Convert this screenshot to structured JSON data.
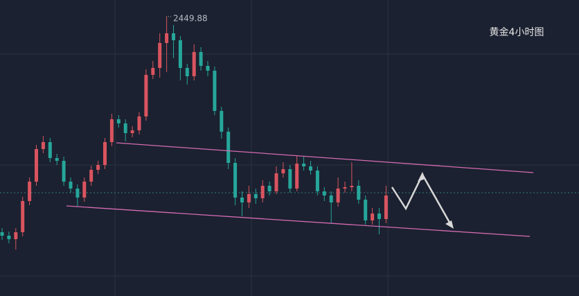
{
  "chart_data": {
    "type": "candlestick",
    "title": "黄金4小时图",
    "annotation": "2449.88",
    "up_color": "#d9545f",
    "down_color": "#26a69a",
    "ylim": [
      2349.25,
      2456
    ],
    "open": [
      2372.25,
      2371,
      2369.75,
      2372.25,
      2383.5,
      2390.5,
      2402.25,
      2404.75,
      2399,
      2398,
      2390.5,
      2388,
      2384.75,
      2390.5,
      2394.75,
      2396.5,
      2404.75,
      2413,
      2411.5,
      2408,
      2409,
      2414,
      2429,
      2431.5,
      2440.5,
      2444,
      2441.5,
      2431.5,
      2428.5,
      2437.25,
      2432.25,
      2430.5,
      2416,
      2408.5,
      2397.25,
      2384.75,
      2383,
      2386,
      2384.5,
      2389,
      2387,
      2393.5,
      2395,
      2388,
      2397,
      2396,
      2394.5,
      2387,
      2385.5,
      2383,
      2388,
      2388.5,
      2389,
      2384,
      2376.5,
      2379,
      2377
    ],
    "high": [
      2373.75,
      2372.5,
      2373.75,
      2385,
      2392,
      2403.75,
      2407,
      2406.25,
      2400.5,
      2399.5,
      2392,
      2389.5,
      2392,
      2396.25,
      2398,
      2406.25,
      2415,
      2414.5,
      2413,
      2410.5,
      2415.5,
      2431,
      2434,
      2444,
      2449.88,
      2447,
      2443,
      2433,
      2440,
      2439,
      2434,
      2432,
      2417.5,
      2410,
      2399,
      2387,
      2389,
      2388,
      2391,
      2390.5,
      2396,
      2397.5,
      2396.5,
      2400,
      2399.5,
      2398,
      2396,
      2388.5,
      2387,
      2392,
      2390.5,
      2397.5,
      2391,
      2385.5,
      2381,
      2381,
      2389
    ],
    "low": [
      2369.5,
      2368.25,
      2366,
      2370.75,
      2382,
      2389,
      2400.75,
      2397.5,
      2396.5,
      2389,
      2386.5,
      2381.5,
      2383.25,
      2389,
      2393.25,
      2395,
      2403.25,
      2410,
      2405,
      2406.5,
      2407.5,
      2412.5,
      2427.5,
      2428,
      2430,
      2435,
      2427,
      2425.5,
      2427,
      2430.5,
      2428.5,
      2414.5,
      2406,
      2395,
      2382,
      2378,
      2381,
      2382.5,
      2383,
      2385.5,
      2386,
      2392,
      2386.5,
      2387,
      2394.5,
      2393,
      2385.5,
      2383.5,
      2375.5,
      2381.5,
      2386.5,
      2387,
      2382.5,
      2375,
      2375,
      2371.5,
      2375.5
    ],
    "close": [
      2371,
      2369.75,
      2372.25,
      2383.5,
      2390.5,
      2402.25,
      2404.75,
      2399,
      2398,
      2390.5,
      2388,
      2384.75,
      2390.5,
      2394.75,
      2396.5,
      2404.75,
      2413,
      2411.5,
      2408,
      2409,
      2414,
      2429,
      2431.5,
      2440.5,
      2444,
      2441.5,
      2431.5,
      2428.5,
      2437.25,
      2432.25,
      2430.5,
      2416,
      2408.5,
      2397.25,
      2384.75,
      2383,
      2386,
      2384.5,
      2389,
      2387,
      2393.5,
      2395,
      2388,
      2397,
      2396,
      2394.5,
      2387,
      2385.5,
      2383,
      2388,
      2388.5,
      2389,
      2384,
      2376.5,
      2379,
      2377,
      2385.5
    ]
  }
}
